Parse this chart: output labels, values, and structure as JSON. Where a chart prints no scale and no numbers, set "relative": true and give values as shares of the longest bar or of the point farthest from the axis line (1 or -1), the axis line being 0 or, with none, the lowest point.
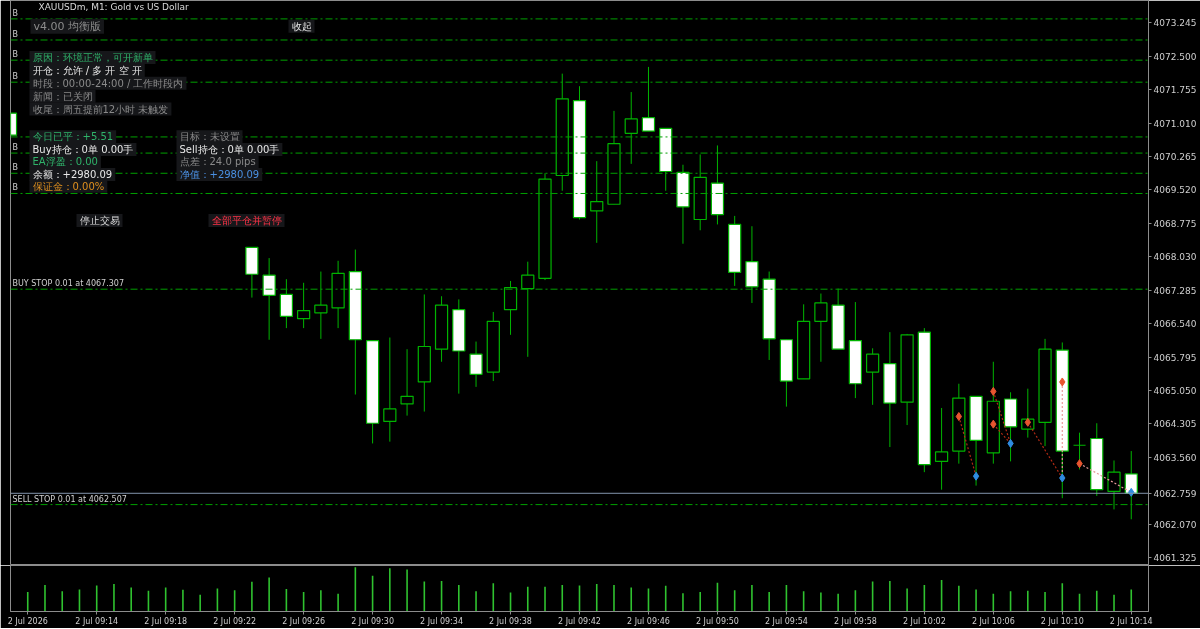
{
  "chart_data": [
    {
      "type": "candlestick",
      "title": "XAUUSDm, M1: Gold vs US Dollar",
      "x": [
        "2026-07-02T09:09",
        "2026-07-02T09:23",
        "2026-07-02T09:24",
        "2026-07-02T09:25",
        "2026-07-02T09:26",
        "2026-07-02T09:27",
        "2026-07-02T09:28",
        "2026-07-02T09:29",
        "2026-07-02T09:30",
        "2026-07-02T09:31",
        "2026-07-02T09:32",
        "2026-07-02T09:33",
        "2026-07-02T09:34",
        "2026-07-02T09:35",
        "2026-07-02T09:36",
        "2026-07-02T09:37",
        "2026-07-02T09:38",
        "2026-07-02T09:39",
        "2026-07-02T09:40",
        "2026-07-02T09:41",
        "2026-07-02T09:42",
        "2026-07-02T09:43",
        "2026-07-02T09:44",
        "2026-07-02T09:45",
        "2026-07-02T09:46",
        "2026-07-02T09:47",
        "2026-07-02T09:48",
        "2026-07-02T09:49",
        "2026-07-02T09:50",
        "2026-07-02T09:51",
        "2026-07-02T09:52",
        "2026-07-02T09:53",
        "2026-07-02T09:54",
        "2026-07-02T09:55",
        "2026-07-02T09:56",
        "2026-07-02T09:57",
        "2026-07-02T09:58",
        "2026-07-02T09:59",
        "2026-07-02T10:00",
        "2026-07-02T10:01",
        "2026-07-02T10:02",
        "2026-07-02T10:03",
        "2026-07-02T10:04",
        "2026-07-02T10:05",
        "2026-07-02T10:06",
        "2026-07-02T10:07",
        "2026-07-02T10:08",
        "2026-07-02T10:09",
        "2026-07-02T10:10",
        "2026-07-02T10:11",
        "2026-07-02T10:12",
        "2026-07-02T10:13",
        "2026-07-02T10:14"
      ],
      "ohlc": [
        [
          4071.23,
          4071.23,
          4070.74,
          4070.74
        ],
        [
          4068.24,
          4068.24,
          4067.12,
          4067.64
        ],
        [
          4067.62,
          4068.0,
          4066.18,
          4067.17
        ],
        [
          4067.19,
          4067.53,
          4066.44,
          4066.7
        ],
        [
          4066.65,
          4067.45,
          4066.44,
          4066.83
        ],
        [
          4066.78,
          4067.7,
          4066.2,
          4066.95
        ],
        [
          4066.89,
          4067.94,
          4066.44,
          4067.66
        ],
        [
          4067.7,
          4068.19,
          4064.96,
          4066.18
        ],
        [
          4066.16,
          4066.16,
          4063.87,
          4064.32
        ],
        [
          4064.36,
          4066.23,
          4063.91,
          4064.64
        ],
        [
          4064.75,
          4065.97,
          4064.49,
          4064.92
        ],
        [
          4065.24,
          4067.19,
          4064.58,
          4066.03
        ],
        [
          4065.97,
          4067.15,
          4065.69,
          4066.95
        ],
        [
          4066.85,
          4067.08,
          4064.98,
          4065.93
        ],
        [
          4065.86,
          4066.14,
          4065.13,
          4065.41
        ],
        [
          4065.46,
          4066.8,
          4065.26,
          4066.59
        ],
        [
          4066.85,
          4067.49,
          4066.29,
          4067.34
        ],
        [
          4067.32,
          4067.92,
          4065.8,
          4067.62
        ],
        [
          4067.55,
          4069.89,
          4067.51,
          4069.76
        ],
        [
          4069.84,
          4072.11,
          4069.5,
          4071.55
        ],
        [
          4071.51,
          4071.83,
          4068.86,
          4068.9
        ],
        [
          4069.05,
          4070.16,
          4068.34,
          4069.26
        ],
        [
          4069.2,
          4071.28,
          4069.2,
          4070.55
        ],
        [
          4070.78,
          4071.7,
          4070.1,
          4071.1
        ],
        [
          4071.13,
          4072.26,
          4070.83,
          4070.83
        ],
        [
          4070.89,
          4070.89,
          4069.5,
          4069.93
        ],
        [
          4069.91,
          4070.08,
          4068.32,
          4069.14
        ],
        [
          4068.86,
          4070.31,
          4068.62,
          4069.8
        ],
        [
          4069.67,
          4070.51,
          4068.75,
          4068.97
        ],
        [
          4068.75,
          4068.94,
          4067.38,
          4067.68
        ],
        [
          4067.92,
          4068.71,
          4067.0,
          4067.36
        ],
        [
          4067.53,
          4067.7,
          4065.73,
          4066.2
        ],
        [
          4066.18,
          4066.18,
          4064.69,
          4065.26
        ],
        [
          4065.31,
          4066.97,
          4065.31,
          4066.59
        ],
        [
          4066.59,
          4067.21,
          4065.69,
          4067.0
        ],
        [
          4066.95,
          4067.32,
          4065.97,
          4065.97
        ],
        [
          4066.16,
          4067.02,
          4064.88,
          4065.2
        ],
        [
          4065.46,
          4065.99,
          4064.73,
          4065.86
        ],
        [
          4065.65,
          4066.35,
          4063.79,
          4064.77
        ],
        [
          4064.79,
          4066.31,
          4064.28,
          4066.29
        ],
        [
          4066.35,
          4066.44,
          4063.23,
          4063.4
        ],
        [
          4063.47,
          4064.66,
          4062.84,
          4063.68
        ],
        [
          4063.7,
          4065.2,
          4063.42,
          4064.88
        ],
        [
          4064.92,
          4064.92,
          4062.93,
          4063.94
        ],
        [
          4063.66,
          4065.69,
          4063.42,
          4064.81
        ],
        [
          4064.86,
          4065.01,
          4063.47,
          4064.24
        ],
        [
          4064.19,
          4065.09,
          4064.0,
          4064.41
        ],
        [
          4064.34,
          4066.2,
          4063.81,
          4065.97
        ],
        [
          4065.95,
          4066.12,
          4062.65,
          4063.7
        ],
        [
          4063.83,
          4064.11,
          4063.29,
          4063.83
        ],
        [
          4063.98,
          4064.32,
          4062.7,
          4062.84
        ],
        [
          4062.8,
          4063.49,
          4062.4,
          4063.23
        ],
        [
          4063.19,
          4063.7,
          4062.18,
          4062.76
        ]
      ],
      "colors": [
        "#ffffff",
        "#ffffff",
        "#ffffff",
        "#ffffff",
        "#000000",
        "#000000",
        "#000000",
        "#ffffff",
        "#ffffff",
        "#000000",
        "#000000",
        "#000000",
        "#000000",
        "#ffffff",
        "#ffffff",
        "#000000",
        "#000000",
        "#000000",
        "#000000",
        "#000000",
        "#ffffff",
        "#000000",
        "#000000",
        "#000000",
        "#ffffff",
        "#ffffff",
        "#ffffff",
        "#000000",
        "#ffffff",
        "#ffffff",
        "#ffffff",
        "#ffffff",
        "#ffffff",
        "#000000",
        "#000000",
        "#ffffff",
        "#ffffff",
        "#000000",
        "#ffffff",
        "#000000",
        "#ffffff",
        "#000000",
        "#000000",
        "#ffffff",
        "#000000",
        "#ffffff",
        "#000000",
        "#000000",
        "#ffffff",
        "#00b400",
        "#ffffff",
        "#000000",
        "#ffffff"
      ],
      "series": [
        {
          "type": "line",
          "color": "#b02a14",
          "line_style": "dotted",
          "marker": "none",
          "x": [
            "2026-07-02T10:04",
            "2026-07-02T10:05"
          ],
          "values": [
            4064.47,
            4063.14
          ]
        },
        {
          "type": "line",
          "color": "#b02a14",
          "line_style": "dotted",
          "marker": "none",
          "x": [
            "2026-07-02T10:06",
            "2026-07-02T10:07"
          ],
          "values": [
            4065.03,
            4063.87
          ]
        },
        {
          "type": "line",
          "color": "#b02a14",
          "line_style": "dotted",
          "marker": "none",
          "x": [
            "2026-07-02T10:06",
            "2026-07-02T10:07"
          ],
          "values": [
            4064.3,
            4063.87
          ]
        },
        {
          "type": "line",
          "color": "#b02a14",
          "line_style": "dotted",
          "marker": "none",
          "x": [
            "2026-07-02T10:08",
            "2026-07-02T10:10"
          ],
          "values": [
            4064.34,
            4063.1
          ]
        },
        {
          "type": "line",
          "color": "#e89a9a",
          "line_style": "dotted",
          "marker": "none",
          "x": [
            "2026-07-02T10:10",
            "2026-07-02T10:10"
          ],
          "values": [
            4065.24,
            4063.1
          ]
        },
        {
          "type": "line",
          "color": "#e89a9a",
          "line_style": "dotted",
          "marker": "none",
          "x": [
            "2026-07-02T10:11",
            "2026-07-02T10:14"
          ],
          "values": [
            4063.42,
            4062.78
          ]
        },
        {
          "type": "scatter",
          "color": "#e8552f",
          "marker": "diamond",
          "x": [
            "2026-07-02T10:04",
            "2026-07-02T10:06",
            "2026-07-02T10:06",
            "2026-07-02T10:08",
            "2026-07-02T10:10",
            "2026-07-02T10:11"
          ],
          "values": [
            4064.47,
            4065.03,
            4064.3,
            4064.34,
            4065.24,
            4063.42
          ]
        },
        {
          "type": "scatter",
          "color": "#2f8be0",
          "marker": "diamond",
          "x": [
            "2026-07-02T10:05",
            "2026-07-02T10:07",
            "2026-07-02T10:10",
            "2026-07-02T10:14"
          ],
          "values": [
            4063.14,
            4063.87,
            4063.1,
            4062.78
          ]
        }
      ],
      "xlim": [
        "2026-07-02T09:09",
        "2026-07-02T10:15"
      ],
      "ylim": [
        4061.15,
        4073.74
      ],
      "yticks": [
        4073.245,
        {
          "value": 4072.5,
          "label": "4072.500"
        },
        4071.755,
        {
          "value": 4071.01,
          "label": "4071.010"
        },
        4070.265,
        {
          "value": 4069.52,
          "label": "4069.520"
        },
        4068.775,
        {
          "value": 4068.03,
          "label": "4068.030"
        },
        4067.285,
        {
          "value": 4066.54,
          "label": "4066.540"
        },
        4065.795,
        {
          "value": 4065.05,
          "label": "4065.050"
        },
        4064.305,
        {
          "value": 4063.56,
          "label": "4063.560"
        },
        {
          "value": 4062.07,
          "label": "4062.070"
        },
        4061.325
      ],
      "tick_labels": "y",
      "ref_lines": [
        {
          "axis": "y",
          "value": 4073.33,
          "label": "B",
          "color": "#00a000",
          "line_style": "dashed"
        },
        {
          "axis": "y",
          "value": 4072.86,
          "label": "B",
          "color": "#00a000",
          "line_style": "dashed"
        },
        {
          "axis": "y",
          "value": 4072.41,
          "label": "B",
          "color": "#00a000",
          "line_style": "dashed"
        },
        {
          "axis": "y",
          "value": 4071.92,
          "label": "B",
          "color": "#00a000",
          "line_style": "dashed"
        },
        {
          "axis": "y",
          "value": 4070.7,
          "color": "#00a000",
          "line_style": "dashed"
        },
        {
          "axis": "y",
          "value": 4070.34,
          "label": "B",
          "color": "#00a000",
          "line_style": "dashed"
        },
        {
          "axis": "y",
          "value": 4069.89,
          "label": "B",
          "color": "#00a000",
          "line_style": "dashed"
        },
        {
          "axis": "y",
          "value": 4069.44,
          "label": "B",
          "color": "#00a000",
          "line_style": "dashed"
        },
        {
          "axis": "y",
          "value": 4067.307,
          "label": "BUY STOP 0.01 at 4067.307",
          "color": "#00a000",
          "line_style": "dashed"
        },
        {
          "axis": "y",
          "value": 4062.507,
          "label": "SELL STOP 0.01 at 4062.507",
          "color": "#00a000",
          "line_style": "dashed"
        },
        {
          "axis": "y",
          "value": 4062.759,
          "label": "4062.759",
          "color": "#8394ac",
          "line_style": "solid"
        }
      ],
      "annotations": [
        "v4.00 均衡版",
        "收起",
        "原因：环境正常，可开新单",
        "开仓：允许 / 多 开 空 开",
        "时段：00:00-24:00 / 工作时段内",
        "新闻：已关闭",
        "收尾：周五提前12小时 未触发",
        "今日已平：+5.51",
        "目标：未设置",
        "Buy持仓：0单 0.00手",
        "Sell持仓：0单 0.00手",
        "EA浮盈：0.00",
        "点差：24.0 pips",
        "余额：+2980.09",
        "净值：+2980.09",
        "保证金：0.00%",
        "停止交易",
        "全部平仓并暂停"
      ]
    },
    {
      "type": "bar",
      "relative": true,
      "x": [
        "2026-07-02T09:10",
        "2026-07-02T09:11",
        "2026-07-02T09:12",
        "2026-07-02T09:13",
        "2026-07-02T09:14",
        "2026-07-02T09:15",
        "2026-07-02T09:16",
        "2026-07-02T09:17",
        "2026-07-02T09:18",
        "2026-07-02T09:19",
        "2026-07-02T09:20",
        "2026-07-02T09:21",
        "2026-07-02T09:22",
        "2026-07-02T09:23",
        "2026-07-02T09:24",
        "2026-07-02T09:25",
        "2026-07-02T09:26",
        "2026-07-02T09:27",
        "2026-07-02T09:28",
        "2026-07-02T09:29",
        "2026-07-02T09:30",
        "2026-07-02T09:31",
        "2026-07-02T09:32",
        "2026-07-02T09:33",
        "2026-07-02T09:34",
        "2026-07-02T09:35",
        "2026-07-02T09:36",
        "2026-07-02T09:37",
        "2026-07-02T09:38",
        "2026-07-02T09:39",
        "2026-07-02T09:40",
        "2026-07-02T09:41",
        "2026-07-02T09:42",
        "2026-07-02T09:43",
        "2026-07-02T09:44",
        "2026-07-02T09:45",
        "2026-07-02T09:46",
        "2026-07-02T09:47",
        "2026-07-02T09:48",
        "2026-07-02T09:49",
        "2026-07-02T09:50",
        "2026-07-02T09:51",
        "2026-07-02T09:52",
        "2026-07-02T09:53",
        "2026-07-02T09:54",
        "2026-07-02T09:55",
        "2026-07-02T09:56",
        "2026-07-02T09:57",
        "2026-07-02T09:58",
        "2026-07-02T09:59",
        "2026-07-02T10:00",
        "2026-07-02T10:01",
        "2026-07-02T10:02",
        "2026-07-02T10:03",
        "2026-07-02T10:04",
        "2026-07-02T10:05",
        "2026-07-02T10:06",
        "2026-07-02T10:07",
        "2026-07-02T10:08",
        "2026-07-02T10:09",
        "2026-07-02T10:10",
        "2026-07-02T10:11",
        "2026-07-02T10:12",
        "2026-07-02T10:13",
        "2026-07-02T10:14"
      ],
      "series": [
        {
          "color": "#2fc22f",
          "values": [
            0.44,
            0.6,
            0.46,
            0.5,
            0.59,
            0.62,
            0.54,
            0.47,
            0.54,
            0.49,
            0.38,
            0.52,
            0.48,
            0.67,
            0.77,
            0.51,
            0.44,
            0.48,
            0.4,
            1,
            0.81,
            0.98,
            0.95,
            0.68,
            0.69,
            0.6,
            0.46,
            0.64,
            0.43,
            0.56,
            0.56,
            0.6,
            0.59,
            0.62,
            0.6,
            0.54,
            0.52,
            0.58,
            0.41,
            0.44,
            0.65,
            0.48,
            0.6,
            0.44,
            0.6,
            0.46,
            0.43,
            0.4,
            0.48,
            0.68,
            0.69,
            0.52,
            0.6,
            0.71,
            0.58,
            0.5,
            0.4,
            0.46,
            0.47,
            0.44,
            0.64,
            0.4,
            0.47,
            0.38,
            0.5
          ]
        }
      ],
      "xlim": [
        "2026-07-02T09:09",
        "2026-07-02T10:15"
      ],
      "xticks": [
        {
          "value": "2026-07-02T09:10",
          "label": "2 Jul 2026"
        },
        {
          "value": "2026-07-02T09:14",
          "label": "2 Jul 09:14"
        },
        {
          "value": "2026-07-02T09:18",
          "label": "2 Jul 09:18"
        },
        {
          "value": "2026-07-02T09:22",
          "label": "2 Jul 09:22"
        },
        {
          "value": "2026-07-02T09:26",
          "label": "2 Jul 09:26"
        },
        {
          "value": "2026-07-02T09:30",
          "label": "2 Jul 09:30"
        },
        {
          "value": "2026-07-02T09:34",
          "label": "2 Jul 09:34"
        },
        {
          "value": "2026-07-02T09:38",
          "label": "2 Jul 09:38"
        },
        {
          "value": "2026-07-02T09:42",
          "label": "2 Jul 09:42"
        },
        {
          "value": "2026-07-02T09:46",
          "label": "2 Jul 09:46"
        },
        {
          "value": "2026-07-02T09:50",
          "label": "2 Jul 09:50"
        },
        {
          "value": "2026-07-02T09:54",
          "label": "2 Jul 09:54"
        },
        {
          "value": "2026-07-02T09:58",
          "label": "2 Jul 09:58"
        },
        {
          "value": "2026-07-02T10:02",
          "label": "2 Jul 10:02"
        },
        {
          "value": "2026-07-02T10:06",
          "label": "2 Jul 10:06"
        },
        {
          "value": "2026-07-02T10:10",
          "label": "2 Jul 10:10"
        },
        {
          "value": "2026-07-02T10:14",
          "label": "2 Jul 10:14"
        }
      ],
      "tick_labels": "x"
    }
  ]
}
